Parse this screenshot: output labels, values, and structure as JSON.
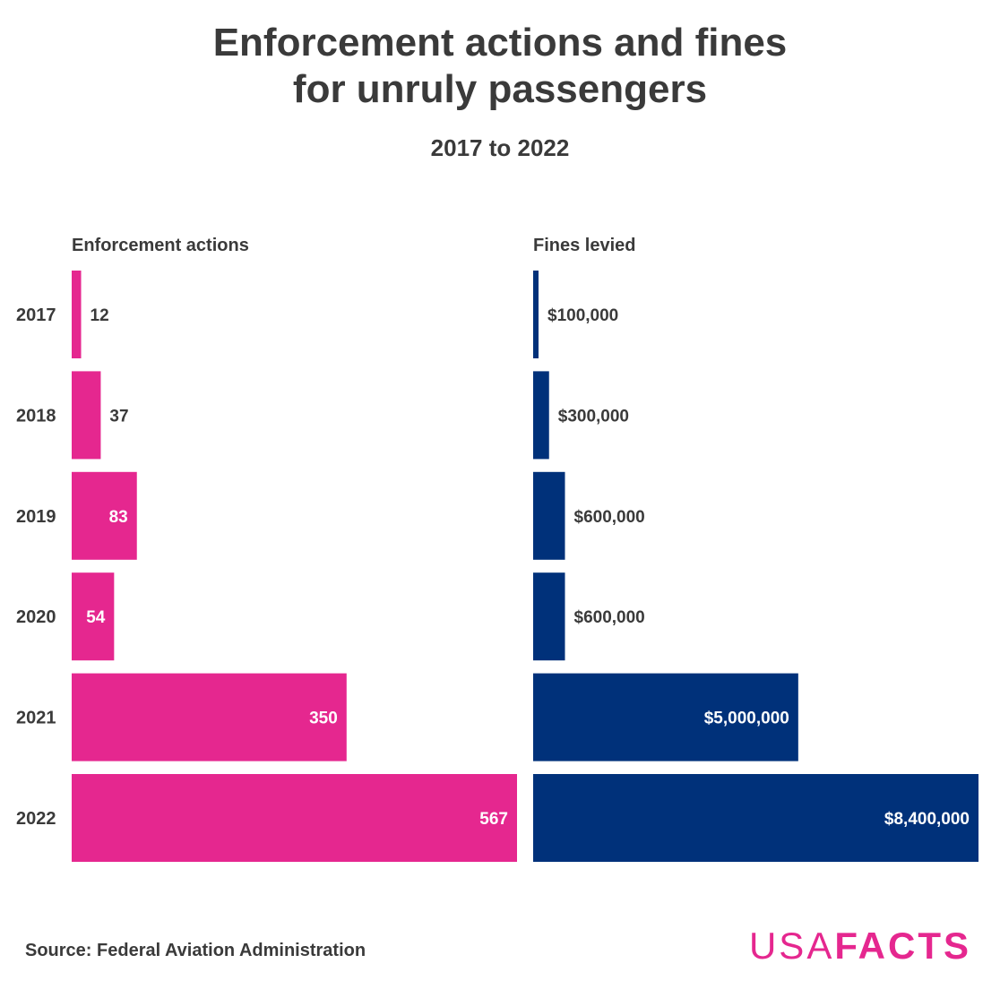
{
  "title_line1": "Enforcement actions and fines",
  "title_line2": "for unruly passengers",
  "subtitle": "2017 to 2022",
  "source": "Source: Federal Aviation Administration",
  "logo": {
    "usa": "USA",
    "facts": "FACTS"
  },
  "colors": {
    "actions": "#e5278f",
    "fines": "#00317a",
    "text": "#3a3a3a",
    "label_inside": "#ffffff"
  },
  "chart_data": {
    "type": "bar",
    "orientation": "horizontal",
    "categories": [
      "2017",
      "2018",
      "2019",
      "2020",
      "2021",
      "2022"
    ],
    "series": [
      {
        "name": "Enforcement actions",
        "values": [
          12,
          37,
          83,
          54,
          350,
          567
        ],
        "labels": [
          "12",
          "37",
          "83",
          "54",
          "350",
          "567"
        ]
      },
      {
        "name": "Fines levied",
        "values": [
          100000,
          300000,
          600000,
          600000,
          5000000,
          8400000
        ],
        "labels": [
          "$100,000",
          "$300,000",
          "$600,000",
          "$600,000",
          "$5,000,000",
          "$8,400,000"
        ]
      }
    ]
  }
}
